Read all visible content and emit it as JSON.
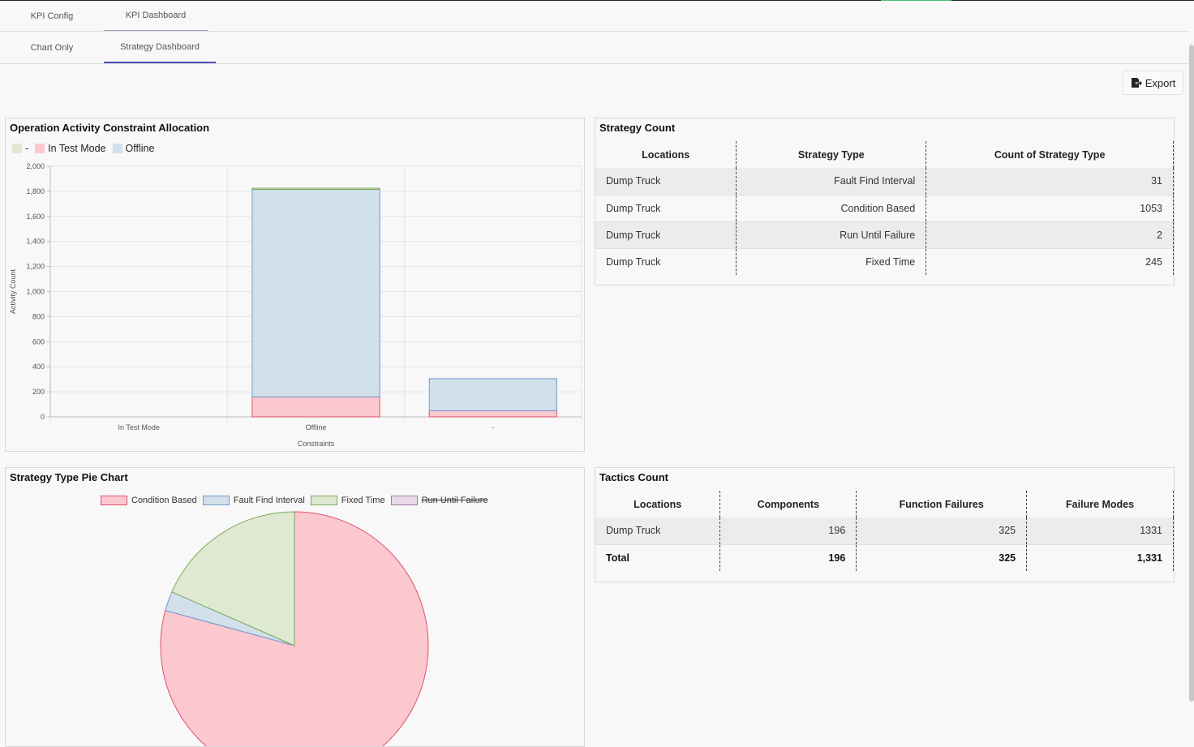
{
  "tabs_top": [
    {
      "label": "KPI Config"
    },
    {
      "label": "KPI Dashboard"
    }
  ],
  "tabs_sub": [
    {
      "label": "Chart Only"
    },
    {
      "label": "Strategy Dashboard"
    }
  ],
  "export_label": "Export",
  "bar_panel": {
    "title": "Operation Activity Constraint Allocation",
    "legend": [
      {
        "label": "-",
        "color": "#dfe9d2"
      },
      {
        "label": "In Test Mode",
        "color": "#fbc8d0"
      },
      {
        "label": "Offline",
        "color": "#cfe0ef"
      }
    ]
  },
  "chart_data": [
    {
      "type": "bar",
      "stacked": true,
      "categories": [
        "In Test Mode",
        "Offline",
        "-"
      ],
      "series": [
        {
          "name": "In Test Mode",
          "values": [
            0,
            160,
            50
          ],
          "fill": "#fbc8d0",
          "stroke": "#e0506a"
        },
        {
          "name": "Offline",
          "values": [
            0,
            1655,
            255
          ],
          "fill": "#d2e0ec",
          "stroke": "#6f9ccc"
        },
        {
          "name": "-",
          "values": [
            0,
            10,
            0
          ],
          "fill": "#dfe9d2",
          "stroke": "#7aa85a"
        }
      ],
      "xlabel": "Constraints",
      "ylabel": "Activity Count",
      "ylim": [
        0,
        2000
      ],
      "yticks": [
        "0",
        "200",
        "400",
        "600",
        "800",
        "1,000",
        "1,200",
        "1,400",
        "1,600",
        "1,800",
        "2,000"
      ],
      "grid": true
    },
    {
      "type": "pie",
      "title": "Strategy Type Pie Chart",
      "slices": [
        {
          "label": "Condition Based",
          "value": 1053,
          "fill": "#fbc8d0",
          "stroke": "#e0506a"
        },
        {
          "label": "Fault Find Interval",
          "value": 31,
          "fill": "#d2e0ec",
          "stroke": "#6f9ccc"
        },
        {
          "label": "Fixed Time",
          "value": 245,
          "fill": "#dfe9d2",
          "stroke": "#7aa85a"
        },
        {
          "label": "Run Until Failure",
          "value": 2,
          "fill": "#e8d8e8",
          "stroke": "#a27aa6",
          "hidden": true
        }
      ]
    }
  ],
  "strategy_count": {
    "title": "Strategy Count",
    "headers": [
      "Locations",
      "Strategy Type",
      "Count of Strategy Type"
    ],
    "rows": [
      [
        "Dump Truck",
        "Fault Find Interval",
        "31"
      ],
      [
        "Dump Truck",
        "Condition Based",
        "1053"
      ],
      [
        "Dump Truck",
        "Run Until Failure",
        "2"
      ],
      [
        "Dump Truck",
        "Fixed Time",
        "245"
      ]
    ]
  },
  "tactics_count": {
    "title": "Tactics Count",
    "headers": [
      "Locations",
      "Components",
      "Function Failures",
      "Failure Modes"
    ],
    "rows": [
      [
        "Dump Truck",
        "196",
        "325",
        "1331"
      ]
    ],
    "total": [
      "Total",
      "196",
      "325",
      "1,331"
    ]
  }
}
